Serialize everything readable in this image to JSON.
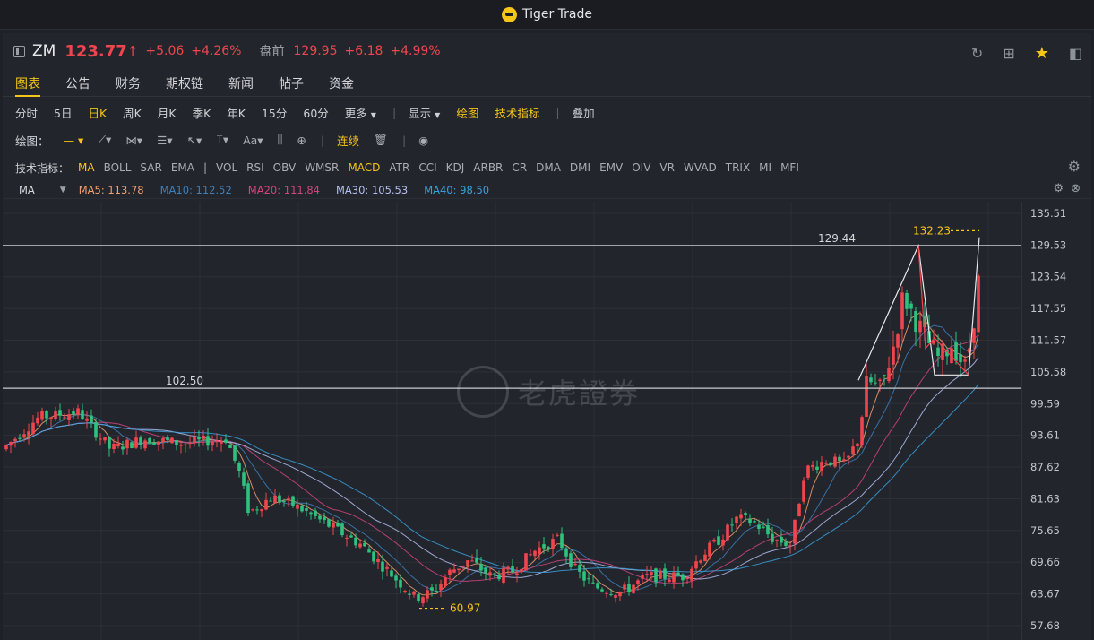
{
  "window": {
    "title": "Tiger Trade"
  },
  "quote": {
    "symbol": "ZM",
    "price": "123.77",
    "arrow": "↑",
    "change": "+5.06",
    "change_pct": "+4.26%",
    "premarket_label": "盘前",
    "premarket_price": "129.95",
    "premarket_change": "+6.18",
    "premarket_pct": "+4.99%"
  },
  "tabs": [
    {
      "label": "图表",
      "active": true
    },
    {
      "label": "公告"
    },
    {
      "label": "财务"
    },
    {
      "label": "期权链"
    },
    {
      "label": "新闻"
    },
    {
      "label": "帖子"
    },
    {
      "label": "资金"
    }
  ],
  "periods": [
    "分时",
    "5日",
    "日K",
    "周K",
    "月K",
    "季K",
    "年K",
    "15分",
    "60分",
    "更多"
  ],
  "active_period": "日K",
  "toolbar1_right": {
    "show": "显示",
    "draw": "绘图",
    "indicators": "技术指标",
    "overlay": "叠加"
  },
  "draw_tools": {
    "label": "绘图：",
    "continuous": "连续"
  },
  "indicators": {
    "label": "技术指标：",
    "items": [
      "MA",
      "BOLL",
      "SAR",
      "EMA",
      "|",
      "VOL",
      "RSI",
      "OBV",
      "WMSR",
      "MACD",
      "ATR",
      "CCI",
      "KDJ",
      "ARBR",
      "CR",
      "DMA",
      "DMI",
      "EMV",
      "OIV",
      "VR",
      "WVAD",
      "TRIX",
      "MI",
      "MFI"
    ],
    "active": [
      "MA",
      "MACD"
    ]
  },
  "ma_legend": {
    "selector": "MA",
    "items": [
      {
        "label": "MA5: 113.78",
        "color": "#f0a070"
      },
      {
        "label": "MA10: 112.52",
        "color": "#3e7fb8"
      },
      {
        "label": "MA20: 111.84",
        "color": "#d0457f"
      },
      {
        "label": "MA30: 105.53",
        "color": "#b4bef0"
      },
      {
        "label": "MA40: 98.50",
        "color": "#3aa0dc"
      }
    ]
  },
  "chart_data": {
    "type": "candlestick",
    "y_ticks": [
      "135.51",
      "129.53",
      "123.54",
      "117.55",
      "111.57",
      "105.58",
      "99.59",
      "93.61",
      "87.62",
      "81.63",
      "75.65",
      "69.66",
      "63.67",
      "57.68"
    ],
    "ylim": [
      57.68,
      135.51
    ],
    "horizontal_lines": [
      {
        "value": 129.44,
        "label": "129.44"
      },
      {
        "value": 102.5,
        "label": "102.50"
      }
    ],
    "annotations": [
      {
        "label": "60.97",
        "value": 60.97
      },
      {
        "label": "132.23",
        "value": 132.23
      }
    ],
    "colors": {
      "up": "#f0454d",
      "down": "#2ec27e"
    },
    "watermark": "老虎證券"
  }
}
